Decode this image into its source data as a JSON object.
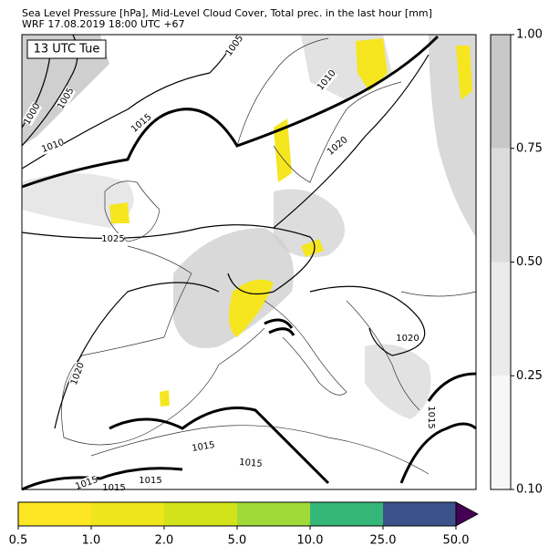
{
  "title": [
    "Sea Level Pressure [hPa], Mid-Level Cloud Cover, Total prec. in the last hour [mm]",
    "WRF 17.08.2019 18:00 UTC +67"
  ],
  "time_label": "13 UTC Tue",
  "isobar_labels": [
    "1005",
    "1005",
    "1000",
    "1010",
    "1015",
    "1010",
    "1020",
    "1025",
    "1020",
    "1020",
    "1015",
    "1015",
    "1015",
    "1015",
    "1015",
    "1015"
  ],
  "cloud_colorbar": {
    "colors": [
      "#f7f7f7",
      "#ebebeb",
      "#dcdcdc",
      "#c8c8c8"
    ],
    "ticks": [
      {
        "value": 0.1,
        "label": "0.10"
      },
      {
        "value": 0.25,
        "label": "0.25"
      },
      {
        "value": 0.5,
        "label": "0.50"
      },
      {
        "value": 0.75,
        "label": "0.75"
      },
      {
        "value": 1,
        "label": "1.00"
      }
    ]
  },
  "precip_colorbar": {
    "colors": [
      "#fde725",
      "#eee51b",
      "#d2e21b",
      "#a0da39",
      "#35b779",
      "#3b528b"
    ],
    "extend_color": "#440154",
    "ticks": [
      0.5,
      {
        "value": 1,
        "label": "1.0"
      },
      {
        "value": 2,
        "label": "2.0"
      },
      {
        "value": 5,
        "label": "5.0"
      },
      {
        "value": 10,
        "label": "10.0"
      },
      {
        "value": 25,
        "label": "25.0"
      },
      {
        "value": 50,
        "label": "50.0"
      }
    ]
  }
}
